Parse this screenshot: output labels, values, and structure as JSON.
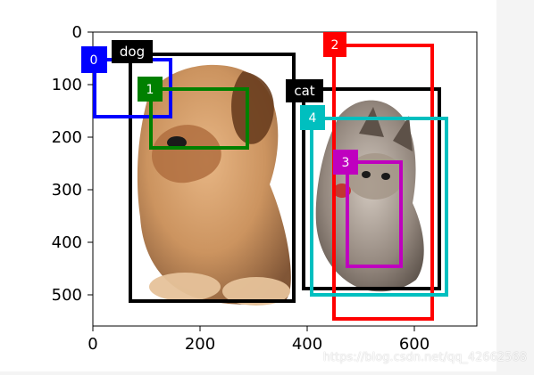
{
  "figure": {
    "xlim": [
      0,
      720
    ],
    "ylim_display": [
      0,
      560
    ],
    "xticks": [
      "0",
      "200",
      "400",
      "600"
    ],
    "yticks": [
      "0",
      "100",
      "200",
      "300",
      "400",
      "500"
    ]
  },
  "chart_data": {
    "type": "scatter",
    "title": "",
    "xlabel": "",
    "ylabel": "",
    "xlim": [
      0,
      720
    ],
    "ylim": [
      560,
      0
    ],
    "grid": false,
    "boxes": [
      {
        "label": "dog",
        "x1": 70,
        "y1": 45,
        "x2": 380,
        "y2": 520,
        "color": "#000000"
      },
      {
        "label": "cat",
        "x1": 400,
        "y1": 112,
        "x2": 655,
        "y2": 493,
        "color": "#000000"
      },
      {
        "label": "0",
        "x1": 0,
        "y1": 55,
        "x2": 145,
        "y2": 165,
        "color": "#0000ff"
      },
      {
        "label": "1",
        "x1": 110,
        "y1": 112,
        "x2": 292,
        "y2": 225,
        "color": "#008000"
      },
      {
        "label": "2",
        "x1": 455,
        "y1": 25,
        "x2": 642,
        "y2": 555,
        "color": "#ff0000"
      },
      {
        "label": "3",
        "x1": 482,
        "y1": 247,
        "x2": 580,
        "y2": 452,
        "color": "#bf00bf"
      },
      {
        "label": "4",
        "x1": 410,
        "y1": 165,
        "x2": 670,
        "y2": 510,
        "color": "#00bfbf"
      }
    ]
  },
  "labels": {
    "dog": "dog",
    "cat": "cat",
    "a0": "0",
    "a1": "1",
    "a2": "2",
    "a3": "3",
    "a4": "4"
  },
  "watermark": "https://blog.csdn.net/qq_42662568"
}
